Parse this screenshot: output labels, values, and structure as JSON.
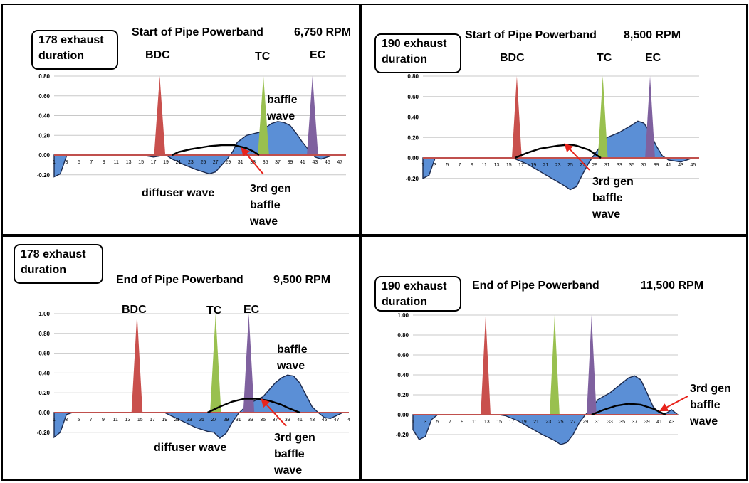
{
  "palette": {
    "area": "#5b8fd6",
    "bdc": "#c9504d",
    "tc": "#99c04f",
    "ec": "#7f619f",
    "axis": "#c0504d",
    "grid": "#c8c8c8"
  },
  "chart_data": [
    {
      "type": "area",
      "title": "Start of Pipe Powerband",
      "rpm": "6,750 RPM",
      "duration_label": [
        "178 exhaust",
        "duration"
      ],
      "ylim": [
        -0.2,
        0.8
      ],
      "y_ticks": [
        "0.80",
        "0.60",
        "0.40",
        "0.20",
        "0.00",
        "-0.20"
      ],
      "x_ticks": [
        "1",
        "3",
        "5",
        "7",
        "9",
        "11",
        "13",
        "15",
        "17",
        "19",
        "21",
        "23",
        "25",
        "27",
        "29",
        "31",
        "33",
        "35",
        "37",
        "39",
        "41",
        "43",
        "45",
        "47"
      ],
      "x_range": [
        1,
        48
      ],
      "series": [
        {
          "name": "BDC",
          "peak_x": 18,
          "half_width": 0.9,
          "peak": 0.8
        },
        {
          "name": "TC",
          "peak_x": 34.7,
          "half_width": 0.9,
          "peak": 0.8
        },
        {
          "name": "EC",
          "peak_x": 42.6,
          "half_width": 0.9,
          "peak": 0.8
        }
      ],
      "wave": [
        [
          1,
          -0.22
        ],
        [
          2,
          -0.19
        ],
        [
          3,
          -0.01
        ],
        [
          4,
          0
        ],
        [
          15,
          0
        ],
        [
          16,
          -0.01
        ],
        [
          17,
          -0.02
        ],
        [
          19,
          0
        ],
        [
          20,
          -0.04
        ],
        [
          22,
          -0.1
        ],
        [
          24,
          -0.15
        ],
        [
          26,
          -0.19
        ],
        [
          27,
          -0.17
        ],
        [
          28,
          -0.1
        ],
        [
          29,
          -0.03
        ],
        [
          29.8,
          0.04
        ],
        [
          30.5,
          0.13
        ],
        [
          32,
          0.2
        ],
        [
          34,
          0.23
        ],
        [
          36,
          0.32
        ],
        [
          37,
          0.34
        ],
        [
          38,
          0.33
        ],
        [
          39,
          0.3
        ],
        [
          40,
          0.22
        ],
        [
          41,
          0.13
        ],
        [
          42,
          0.05
        ],
        [
          43,
          -0.02
        ],
        [
          44,
          -0.04
        ],
        [
          45,
          -0.02
        ],
        [
          46,
          0
        ],
        [
          48,
          0
        ]
      ],
      "baffle_curve": [
        [
          20,
          0
        ],
        [
          21,
          0.03
        ],
        [
          23,
          0.06
        ],
        [
          26,
          0.09
        ],
        [
          28,
          0.1
        ],
        [
          30,
          0.1
        ],
        [
          32,
          0.07
        ],
        [
          33,
          0.04
        ],
        [
          34,
          0
        ]
      ],
      "labels": {
        "baffle": [
          "baffle",
          "wave"
        ],
        "diffuser": "diffuser wave",
        "gen3": [
          "3rd gen",
          "baffle",
          "wave"
        ]
      }
    },
    {
      "type": "area",
      "title": "Start of Pipe Powerband",
      "rpm": "8,500 RPM",
      "duration_label": [
        "190 exhaust",
        "duration"
      ],
      "ylim": [
        -0.2,
        0.8
      ],
      "y_ticks": [
        "0.80",
        "0.60",
        "0.40",
        "0.20",
        "0.00",
        "-0.20"
      ],
      "x_ticks": [
        "1",
        "3",
        "5",
        "7",
        "9",
        "11",
        "13",
        "15",
        "17",
        "19",
        "21",
        "23",
        "25",
        "27",
        "29",
        "31",
        "33",
        "35",
        "37",
        "39",
        "41",
        "43",
        "45"
      ],
      "x_range": [
        1,
        46
      ],
      "series": [
        {
          "name": "BDC",
          "peak_x": 16.3,
          "half_width": 0.8,
          "peak": 0.8
        },
        {
          "name": "TC",
          "peak_x": 30.3,
          "half_width": 0.8,
          "peak": 0.8
        },
        {
          "name": "EC",
          "peak_x": 38,
          "half_width": 0.8,
          "peak": 0.8
        }
      ],
      "wave": [
        [
          1,
          -0.2
        ],
        [
          2,
          -0.17
        ],
        [
          3,
          0
        ],
        [
          15,
          0
        ],
        [
          16,
          -0.01
        ],
        [
          18,
          -0.06
        ],
        [
          20,
          -0.13
        ],
        [
          22,
          -0.2
        ],
        [
          24,
          -0.27
        ],
        [
          25,
          -0.31
        ],
        [
          26,
          -0.28
        ],
        [
          27,
          -0.16
        ],
        [
          28,
          -0.05
        ],
        [
          29,
          0.04
        ],
        [
          30,
          0.12
        ],
        [
          31,
          0.2
        ],
        [
          33,
          0.25
        ],
        [
          35,
          0.32
        ],
        [
          36,
          0.36
        ],
        [
          37,
          0.34
        ],
        [
          38,
          0.25
        ],
        [
          39,
          0.12
        ],
        [
          40,
          0.02
        ],
        [
          41,
          -0.02
        ],
        [
          43,
          -0.04
        ],
        [
          44,
          -0.02
        ],
        [
          45,
          0
        ],
        [
          46,
          0
        ]
      ],
      "baffle_curve": [
        [
          16,
          0
        ],
        [
          18,
          0.05
        ],
        [
          20,
          0.09
        ],
        [
          23,
          0.12
        ],
        [
          25,
          0.13
        ],
        [
          26,
          0.12
        ],
        [
          28,
          0.08
        ],
        [
          29,
          0.04
        ],
        [
          30,
          0
        ]
      ],
      "labels": {
        "gen3": [
          "3rd gen",
          "baffle",
          "wave"
        ]
      }
    },
    {
      "type": "area",
      "title": "End of Pipe Powerband",
      "rpm": "9,500 RPM",
      "duration_label": [
        "178 exhaust",
        "duration"
      ],
      "ylim": [
        -0.2,
        1.0
      ],
      "y_ticks": [
        "1.00",
        "0.80",
        "0.60",
        "0.40",
        "0.20",
        "0.00",
        "-0.20"
      ],
      "x_ticks": [
        "1",
        "3",
        "5",
        "7",
        "9",
        "11",
        "13",
        "15",
        "17",
        "19",
        "21",
        "23",
        "25",
        "27",
        "29",
        "31",
        "33",
        "35",
        "37",
        "39",
        "41",
        "43",
        "45",
        "47",
        "4"
      ],
      "x_range": [
        1,
        49
      ],
      "series": [
        {
          "name": "BDC",
          "peak_x": 14.5,
          "half_width": 0.9,
          "peak": 1.0
        },
        {
          "name": "TC",
          "peak_x": 27.3,
          "half_width": 0.9,
          "peak": 1.0
        },
        {
          "name": "EC",
          "peak_x": 32.7,
          "half_width": 0.9,
          "peak": 1.0
        }
      ],
      "wave": [
        [
          1,
          -0.25
        ],
        [
          2,
          -0.2
        ],
        [
          3,
          -0.02
        ],
        [
          4,
          0
        ],
        [
          19,
          0
        ],
        [
          20,
          -0.03
        ],
        [
          22,
          -0.09
        ],
        [
          24,
          -0.15
        ],
        [
          26,
          -0.19
        ],
        [
          27,
          -0.2
        ],
        [
          28,
          -0.26
        ],
        [
          29,
          -0.21
        ],
        [
          30,
          -0.1
        ],
        [
          31,
          -0.01
        ],
        [
          32,
          0.05
        ],
        [
          33,
          0.1
        ],
        [
          35,
          0.16
        ],
        [
          37,
          0.3
        ],
        [
          38,
          0.35
        ],
        [
          39,
          0.38
        ],
        [
          40,
          0.37
        ],
        [
          41,
          0.3
        ],
        [
          42,
          0.18
        ],
        [
          43,
          0.06
        ],
        [
          44,
          0
        ],
        [
          45,
          -0.05
        ],
        [
          46,
          -0.06
        ],
        [
          47,
          -0.03
        ],
        [
          48,
          0
        ],
        [
          49,
          0
        ]
      ],
      "baffle_curve": [
        [
          26,
          0
        ],
        [
          28,
          0.06
        ],
        [
          30,
          0.11
        ],
        [
          32,
          0.14
        ],
        [
          34,
          0.14
        ],
        [
          36,
          0.12
        ],
        [
          38,
          0.08
        ],
        [
          39,
          0.05
        ],
        [
          41,
          0
        ]
      ],
      "labels": {
        "baffle": [
          "baffle",
          "wave"
        ],
        "diffuser": "diffuser wave",
        "gen3": [
          "3rd gen",
          "baffle",
          "wave"
        ]
      }
    },
    {
      "type": "area",
      "title": "End of Pipe Powerband",
      "rpm": "11,500 RPM",
      "duration_label": [
        "190 exhaust",
        "duration"
      ],
      "ylim": [
        -0.2,
        1.0
      ],
      "y_ticks": [
        "1.00",
        "0.80",
        "0.60",
        "0.40",
        "0.20",
        "0.00",
        "-0.20"
      ],
      "x_ticks": [
        "1",
        "3",
        "5",
        "7",
        "9",
        "11",
        "13",
        "15",
        "17",
        "19",
        "21",
        "23",
        "25",
        "27",
        "29",
        "31",
        "33",
        "35",
        "37",
        "39",
        "41",
        "43"
      ],
      "x_range": [
        1,
        44
      ],
      "series": [
        {
          "name": "BDC",
          "peak_x": 12.8,
          "half_width": 0.8,
          "peak": 1.0
        },
        {
          "name": "TC",
          "peak_x": 24,
          "half_width": 0.8,
          "peak": 1.0
        },
        {
          "name": "EC",
          "peak_x": 30,
          "half_width": 0.8,
          "peak": 1.0
        }
      ],
      "wave": [
        [
          1,
          -0.15
        ],
        [
          2,
          -0.25
        ],
        [
          3,
          -0.22
        ],
        [
          4,
          -0.05
        ],
        [
          5,
          0
        ],
        [
          15,
          0
        ],
        [
          16,
          -0.01
        ],
        [
          18,
          -0.06
        ],
        [
          20,
          -0.13
        ],
        [
          22,
          -0.2
        ],
        [
          24,
          -0.26
        ],
        [
          25,
          -0.3
        ],
        [
          26,
          -0.28
        ],
        [
          27,
          -0.2
        ],
        [
          28,
          -0.08
        ],
        [
          29,
          0
        ],
        [
          30,
          0.05
        ],
        [
          31,
          0.15
        ],
        [
          33,
          0.22
        ],
        [
          35,
          0.32
        ],
        [
          36,
          0.37
        ],
        [
          37,
          0.39
        ],
        [
          38,
          0.35
        ],
        [
          39,
          0.22
        ],
        [
          40,
          0.08
        ],
        [
          41,
          0.02
        ],
        [
          42,
          0.01
        ],
        [
          43,
          0.05
        ],
        [
          44,
          0
        ]
      ],
      "baffle_curve": [
        [
          30,
          0
        ],
        [
          32,
          0.05
        ],
        [
          34,
          0.09
        ],
        [
          36,
          0.11
        ],
        [
          38,
          0.1
        ],
        [
          40,
          0.06
        ],
        [
          41,
          0.03
        ],
        [
          42,
          0
        ]
      ],
      "labels": {
        "gen3": [
          "3rd gen",
          "baffle",
          "wave"
        ]
      }
    }
  ]
}
